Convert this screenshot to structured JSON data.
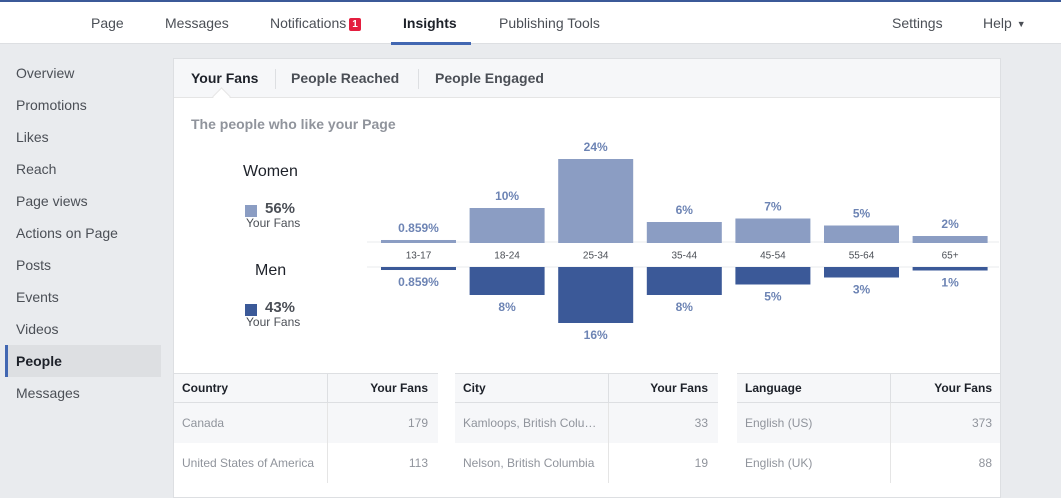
{
  "nav": {
    "page": "Page",
    "messages": "Messages",
    "notifications": "Notifications",
    "notifications_badge": "1",
    "insights": "Insights",
    "publishing_tools": "Publishing Tools",
    "settings": "Settings",
    "help": "Help",
    "help_caret": "▼"
  },
  "sidebar": {
    "items": [
      "Overview",
      "Promotions",
      "Likes",
      "Reach",
      "Page views",
      "Actions on Page",
      "Posts",
      "Events",
      "Videos",
      "People",
      "Messages"
    ],
    "active": "People"
  },
  "tabs": [
    "Your Fans",
    "People Reached",
    "People Engaged"
  ],
  "section_title": "The people who like your Page",
  "legend": {
    "women": {
      "title": "Women",
      "pct": "56%",
      "sub": "Your Fans",
      "color": "#8b9dc3"
    },
    "men": {
      "title": "Men",
      "pct": "43%",
      "sub": "Your Fans",
      "color": "#3b5998"
    }
  },
  "chart_data": {
    "type": "bar",
    "categories": [
      "13-17",
      "18-24",
      "25-34",
      "35-44",
      "45-54",
      "55-64",
      "65+"
    ],
    "series": [
      {
        "name": "Women",
        "values": [
          0.859,
          10,
          24,
          6,
          7,
          5,
          2
        ],
        "labels": [
          "0.859%",
          "10%",
          "24%",
          "6%",
          "7%",
          "5%",
          "2%"
        ],
        "color": "#8b9dc3"
      },
      {
        "name": "Men",
        "values": [
          0.859,
          8,
          16,
          8,
          5,
          3,
          1
        ],
        "labels": [
          "0.859%",
          "8%",
          "16%",
          "8%",
          "5%",
          "3%",
          "1%"
        ],
        "color": "#3b5998"
      }
    ]
  },
  "tables": [
    {
      "header": [
        "Country",
        "Your Fans"
      ],
      "rows": [
        [
          "Canada",
          "179"
        ],
        [
          "United States of America",
          "113"
        ]
      ]
    },
    {
      "header": [
        "City",
        "Your Fans"
      ],
      "rows": [
        [
          "Kamloops, British Colu…",
          "33"
        ],
        [
          "Nelson, British Columbia",
          "19"
        ]
      ]
    },
    {
      "header": [
        "Language",
        "Your Fans"
      ],
      "rows": [
        [
          "English (US)",
          "373"
        ],
        [
          "English (UK)",
          "88"
        ]
      ]
    }
  ]
}
